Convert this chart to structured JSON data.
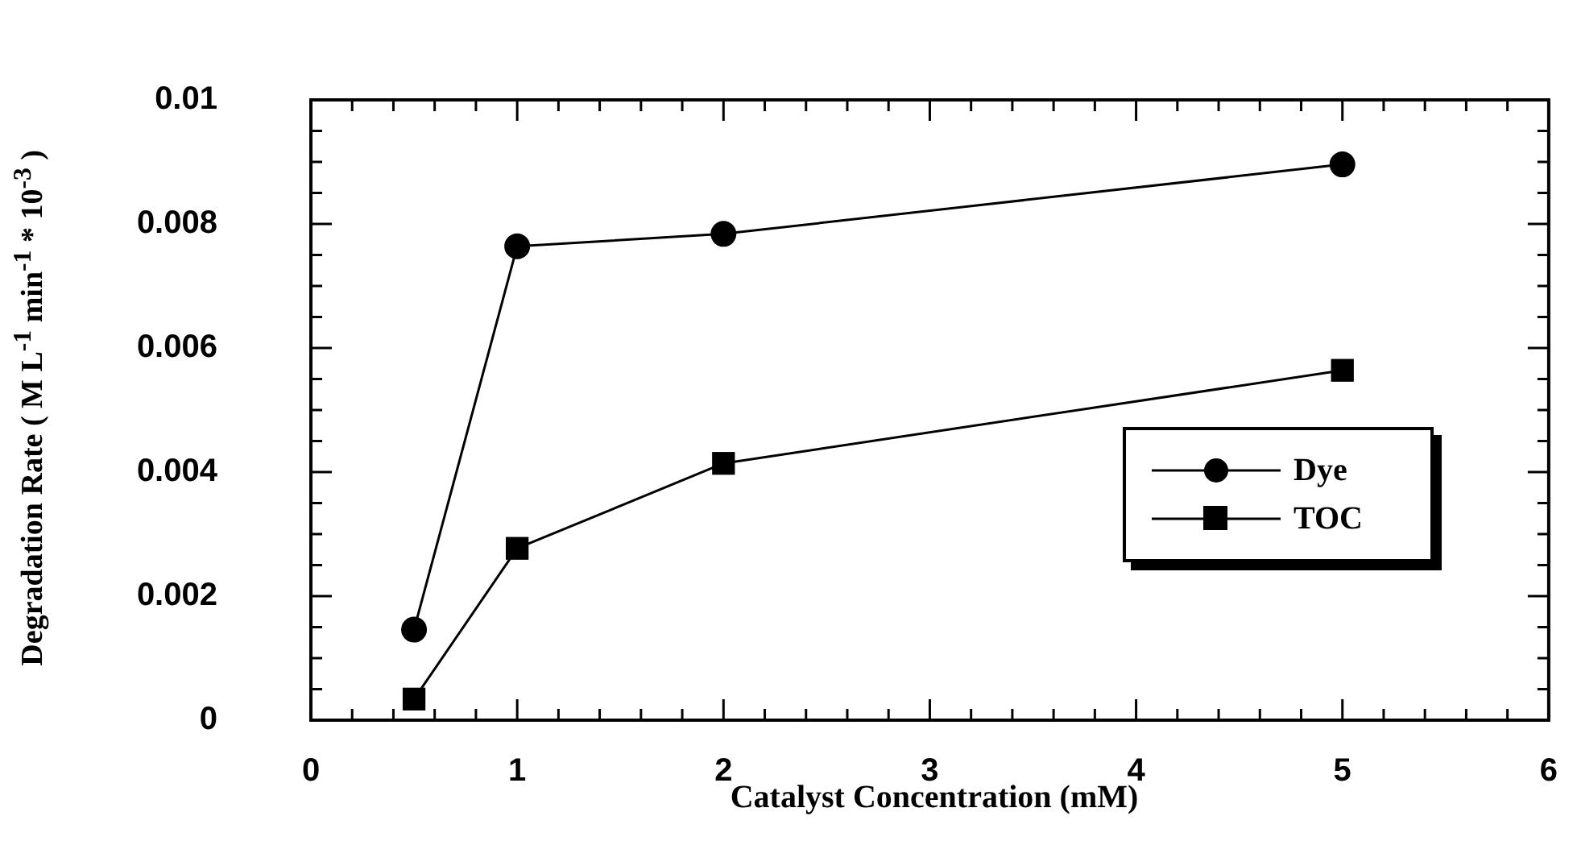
{
  "chart_data": {
    "type": "line",
    "xlabel": "Catalyst Concentration (mM)",
    "ylabel": "Degradation Rate ( M L$^{-1}$ min$^{-1}$ * 10$^{-3}$ )",
    "xlim": [
      0,
      6
    ],
    "ylim": [
      0,
      0.01
    ],
    "xticks": [
      0,
      {
        "value": 0.2,
        "label": null
      },
      {
        "value": 0.4,
        "label": null
      },
      {
        "value": 0.6,
        "label": null
      },
      {
        "value": 0.8,
        "label": null
      },
      1,
      {
        "value": 1.2,
        "label": null
      },
      {
        "value": 1.4,
        "label": null
      },
      {
        "value": 1.6,
        "label": null
      },
      {
        "value": 1.8,
        "label": null
      },
      2,
      {
        "value": 2.2,
        "label": null
      },
      {
        "value": 2.4,
        "label": null
      },
      {
        "value": 2.6,
        "label": null
      },
      {
        "value": 2.8,
        "label": null
      },
      3,
      {
        "value": 3.2,
        "label": null
      },
      {
        "value": 3.4,
        "label": null
      },
      {
        "value": 3.6,
        "label": null
      },
      {
        "value": 3.8,
        "label": null
      },
      4,
      {
        "value": 4.2,
        "label": null
      },
      {
        "value": 4.4,
        "label": null
      },
      {
        "value": 4.6,
        "label": null
      },
      {
        "value": 4.8,
        "label": null
      },
      5,
      {
        "value": 5.2,
        "label": null
      },
      {
        "value": 5.4,
        "label": null
      },
      {
        "value": 5.6,
        "label": null
      },
      {
        "value": 5.8,
        "label": null
      },
      6
    ],
    "yticks": [
      0,
      {
        "value": 0.0005,
        "label": null
      },
      {
        "value": 0.001,
        "label": null
      },
      {
        "value": 0.0015,
        "label": null
      },
      0.002,
      {
        "value": 0.0025,
        "label": null
      },
      {
        "value": 0.003,
        "label": null
      },
      {
        "value": 0.0035,
        "label": null
      },
      0.004,
      {
        "value": 0.0045,
        "label": null
      },
      {
        "value": 0.005,
        "label": null
      },
      {
        "value": 0.0055,
        "label": null
      },
      0.006,
      {
        "value": 0.0065,
        "label": null
      },
      {
        "value": 0.007,
        "label": null
      },
      {
        "value": 0.0075,
        "label": null
      },
      0.008,
      {
        "value": 0.0085,
        "label": null
      },
      {
        "value": 0.009,
        "label": null
      },
      {
        "value": 0.0095,
        "label": null
      },
      0.01
    ],
    "grid": false,
    "legend": "right",
    "line_style": "solid",
    "x": [
      0.5,
      1,
      2,
      5
    ],
    "series": [
      {
        "name": "Dye",
        "color": "#000000",
        "marker": "circle",
        "values": [
          0.00146,
          0.00764,
          0.00784,
          0.00896
        ]
      },
      {
        "name": "TOC",
        "color": "#000000",
        "marker": "square",
        "values": [
          0.00034,
          0.00277,
          0.00414,
          0.00564
        ]
      }
    ]
  }
}
